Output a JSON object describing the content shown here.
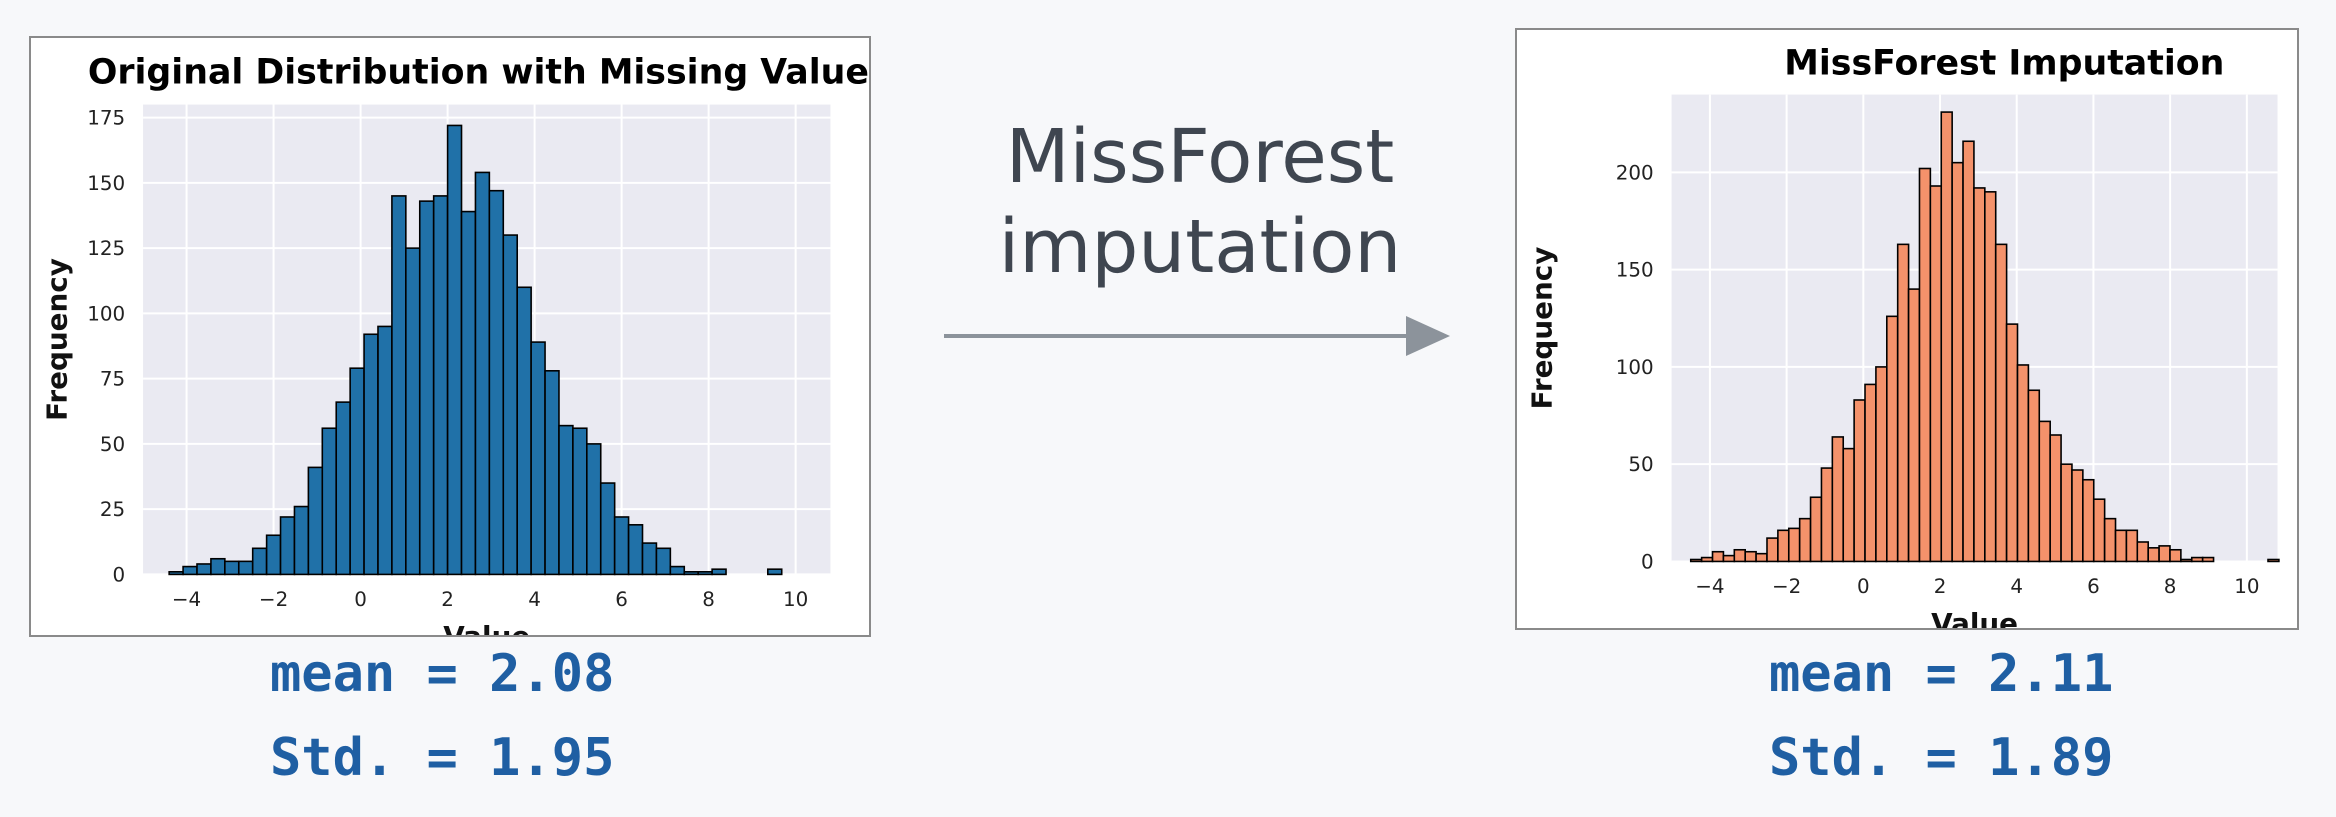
{
  "colors": {
    "left_bars": "#2071a8",
    "right_bars": "#f4926b",
    "plot_bg": "#eaeaf2",
    "stat_text": "#1f5fa3",
    "arrow": "#8c939b"
  },
  "caption": {
    "line1": "MissForest",
    "line2": "imputation"
  },
  "left_stats": {
    "mean": "mean = 2.08",
    "std": "Std. = 1.95"
  },
  "right_stats": {
    "mean": "mean = 2.11",
    "std": "Std. = 1.89"
  },
  "chart_data": [
    {
      "type": "bar",
      "title": "Original Distribution with Missing Values",
      "xlabel": "Value",
      "ylabel": "Frequency",
      "xlim": [
        -5,
        10.8
      ],
      "ylim": [
        0,
        180
      ],
      "xticks": [
        -4,
        -2,
        0,
        2,
        4,
        6,
        8,
        10
      ],
      "yticks": [
        0,
        25,
        50,
        75,
        100,
        125,
        150,
        175
      ],
      "grid": true,
      "bin_start": -4.4,
      "bin_width": 0.32,
      "values": [
        1,
        3,
        4,
        6,
        5,
        5,
        10,
        15,
        22,
        26,
        41,
        56,
        66,
        79,
        92,
        95,
        145,
        125,
        143,
        145,
        172,
        139,
        154,
        147,
        130,
        110,
        89,
        78,
        57,
        56,
        50,
        35,
        22,
        19,
        12,
        10,
        3,
        1,
        1,
        2,
        0,
        0,
        0,
        2
      ]
    },
    {
      "type": "bar",
      "title": "MissForest Imputation",
      "xlabel": "Value",
      "ylabel": "Frequency",
      "xlim": [
        -5,
        10.8
      ],
      "ylim": [
        0,
        240
      ],
      "xticks": [
        -4,
        -2,
        0,
        2,
        4,
        6,
        8,
        10
      ],
      "yticks": [
        0,
        50,
        100,
        150,
        200
      ],
      "grid": true,
      "bin_start": -4.5,
      "bin_width": 0.284,
      "values": [
        1,
        2,
        5,
        3,
        6,
        5,
        4,
        12,
        16,
        17,
        22,
        33,
        48,
        64,
        58,
        83,
        91,
        100,
        126,
        163,
        140,
        202,
        193,
        231,
        205,
        216,
        192,
        190,
        163,
        122,
        101,
        88,
        72,
        65,
        50,
        47,
        42,
        32,
        22,
        16,
        16,
        10,
        7,
        8,
        6,
        1,
        2,
        2,
        0,
        0,
        0,
        0,
        0,
        1
      ]
    }
  ]
}
